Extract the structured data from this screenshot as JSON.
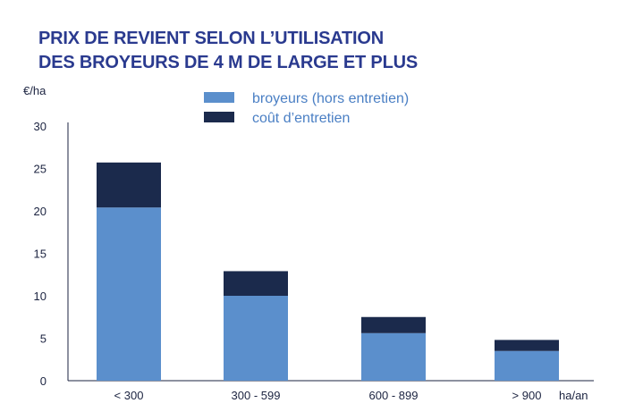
{
  "title_line1": "PRIX DE REVIENT SELON L’UTILISATION",
  "title_line2": "DES BROYEURS DE 4 M DE LARGE ET PLUS",
  "colors": {
    "title": "#2a3a8f",
    "broyeurs": "#5b8fcc",
    "entretien": "#1b2a4c",
    "legend_text": "#4a7fc4"
  },
  "chart_data": {
    "type": "bar",
    "stacked": true,
    "ylabel": "€/ha",
    "xlabel": "ha/an",
    "ylim": [
      0,
      30
    ],
    "yticks": [
      0,
      5,
      10,
      15,
      20,
      25,
      30
    ],
    "categories": [
      "< 300",
      "300 - 599",
      "600 - 899",
      "> 900"
    ],
    "series": [
      {
        "name": "broyeurs (hors entretien)",
        "values": [
          20.4,
          10.0,
          5.6,
          3.5
        ],
        "color": "#5b8fcc"
      },
      {
        "name": "coût d’entretien",
        "values": [
          5.3,
          2.9,
          1.9,
          1.3
        ],
        "color": "#1b2a4c"
      }
    ],
    "legend_position": "top-center",
    "grid": false
  }
}
